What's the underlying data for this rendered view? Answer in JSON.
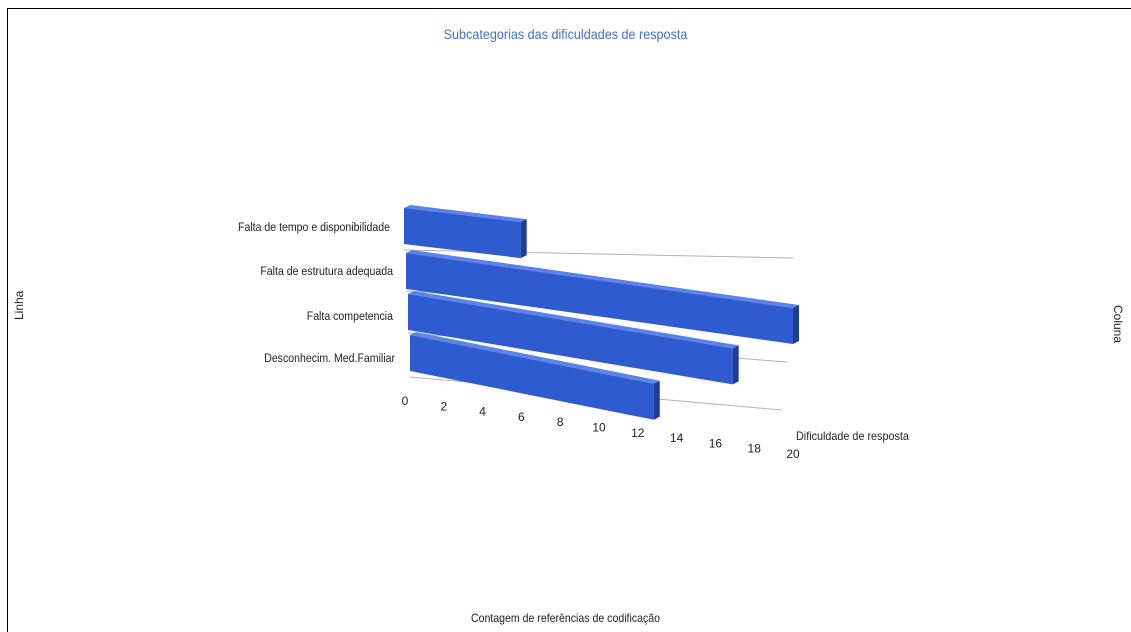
{
  "chart_data": {
    "type": "bar",
    "orientation": "horizontal",
    "style": "3d",
    "title": "Subcategorias das dificuldades de resposta",
    "xlabel": "Contagem de referências de codificação",
    "ylabel": "Linha",
    "right_axis_label": "Coluna",
    "depth_label": "Dificuldade de resposta",
    "categories": [
      "Falta de tempo e disponibilidade",
      "Falta de estrutura adequada",
      "Falta competencia",
      "Desconhecim. Med.Familiar"
    ],
    "values": [
      6,
      20,
      17,
      13
    ],
    "xlim": [
      0,
      20
    ],
    "ticks": [
      "0",
      "2",
      "4",
      "6",
      "8",
      "10",
      "12",
      "14",
      "16",
      "18",
      "20"
    ],
    "grid": true,
    "legend": "none",
    "colors": {
      "bar": "#2e5bcf",
      "bar_top": "#5c83e6",
      "bar_end": "#1c3e9a",
      "grid": "#b3b3b3",
      "title": "#4472c4"
    }
  }
}
